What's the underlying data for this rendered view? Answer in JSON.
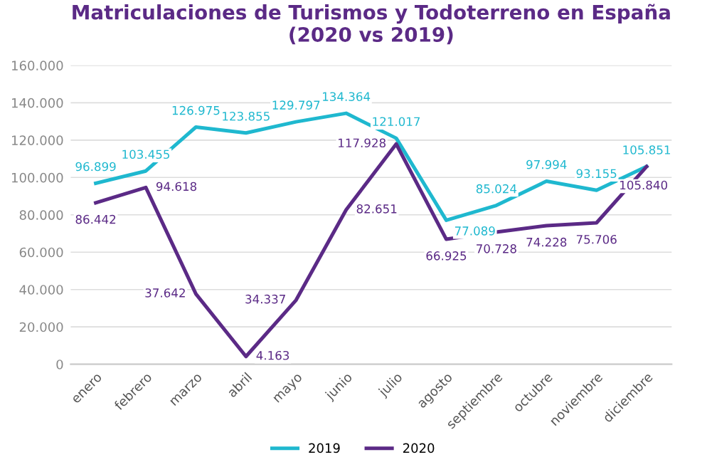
{
  "chart_data": {
    "type": "line",
    "title": "Matriculaciones de Turismos y Todoterreno en España\n(2020 vs 2019)",
    "categories": [
      "enero",
      "febrero",
      "marzo",
      "abril",
      "mayo",
      "junio",
      "julio",
      "agosto",
      "septiembre",
      "octubre",
      "noviembre",
      "diciembre"
    ],
    "series": [
      {
        "name": "2019",
        "color": "#1fb8cf",
        "values": [
          96899,
          103455,
          126975,
          123855,
          129797,
          134364,
          121017,
          77089,
          85024,
          97994,
          93155,
          105851
        ],
        "value_labels": [
          "96.899",
          "103.455",
          "126.975",
          "123.855",
          "129.797",
          "134.364",
          "121.017",
          "77.089",
          "85.024",
          "97.994",
          "93.155",
          "105.851"
        ]
      },
      {
        "name": "2020",
        "color": "#5b2a86",
        "values": [
          86442,
          94618,
          37642,
          4163,
          34337,
          82651,
          117928,
          66925,
          70728,
          74228,
          75706,
          105840
        ],
        "value_labels": [
          "86.442",
          "94.618",
          "37.642",
          "4.163",
          "34.337",
          "82.651",
          "117.928",
          "66.925",
          "70.728",
          "74.228",
          "75.706",
          "105.840"
        ]
      }
    ],
    "ylim": [
      0,
      160000
    ],
    "yticks": [
      0,
      {
        "value": 20000,
        "label": "20.000"
      },
      {
        "value": 40000,
        "label": "40.000"
      },
      {
        "value": 60000,
        "label": "60.000"
      },
      {
        "value": 80000,
        "label": "80.000"
      },
      {
        "value": 100000,
        "label": "100.000"
      },
      {
        "value": 120000,
        "label": "120.000"
      },
      {
        "value": 140000,
        "label": "140.000"
      },
      {
        "value": 160000,
        "label": "160.000"
      }
    ],
    "grid": "y",
    "legend": "bottom",
    "marker": "none",
    "line_style": "solid"
  }
}
